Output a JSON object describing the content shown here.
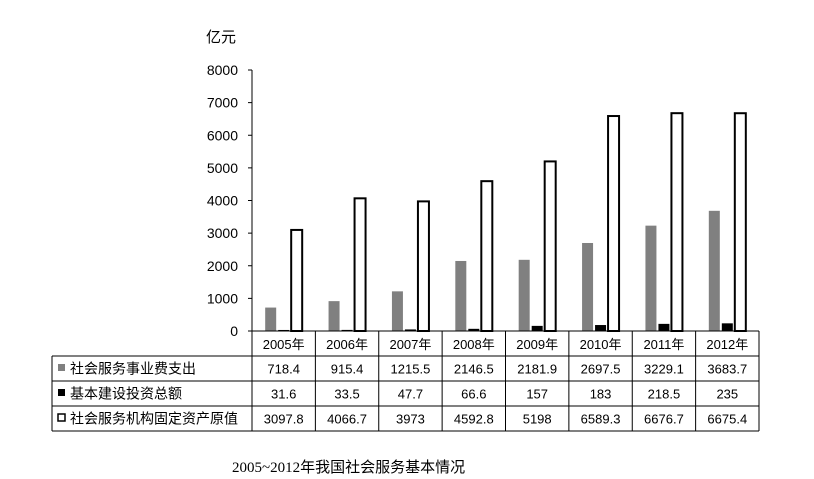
{
  "chart_data": {
    "type": "bar",
    "title": "2005~2012年我国社会服务基本情况",
    "ylabel": "亿元",
    "ylim": [
      0,
      8000
    ],
    "yticks": [
      0,
      1000,
      2000,
      3000,
      4000,
      5000,
      6000,
      7000,
      8000
    ],
    "categories": [
      "2005年",
      "2006年",
      "2007年",
      "2008年",
      "2009年",
      "2010年",
      "2011年",
      "2012年"
    ],
    "series": [
      {
        "name": "社会服务事业费支出",
        "color": "#808080",
        "values": [
          718.4,
          915.4,
          1215.5,
          2146.5,
          2181.9,
          2697.5,
          3229.1,
          3683.7
        ],
        "labels": [
          "718.4",
          "915.4",
          "1215.5",
          "2146.5",
          "2181.9",
          "2697.5",
          "3229.1",
          "3683.7"
        ]
      },
      {
        "name": "基本建设投资总额",
        "color": "#000000",
        "values": [
          31.6,
          33.5,
          47.7,
          66.6,
          157,
          183,
          218.5,
          235
        ],
        "labels": [
          "31.6",
          "33.5",
          "47.7",
          "66.6",
          "157",
          "183",
          "218.5",
          "235"
        ]
      },
      {
        "name": "社会服务机构固定资产原值",
        "color": "#ffffff",
        "values": [
          3097.8,
          4066.7,
          3973,
          4592.8,
          5198,
          6589.3,
          6676.7,
          6675.4
        ],
        "labels": [
          "3097.8",
          "4066.7",
          "3973",
          "4592.8",
          "5198",
          "6589.3",
          "6676.7",
          "6675.4"
        ]
      }
    ],
    "grid": false,
    "legend": "data-table"
  }
}
